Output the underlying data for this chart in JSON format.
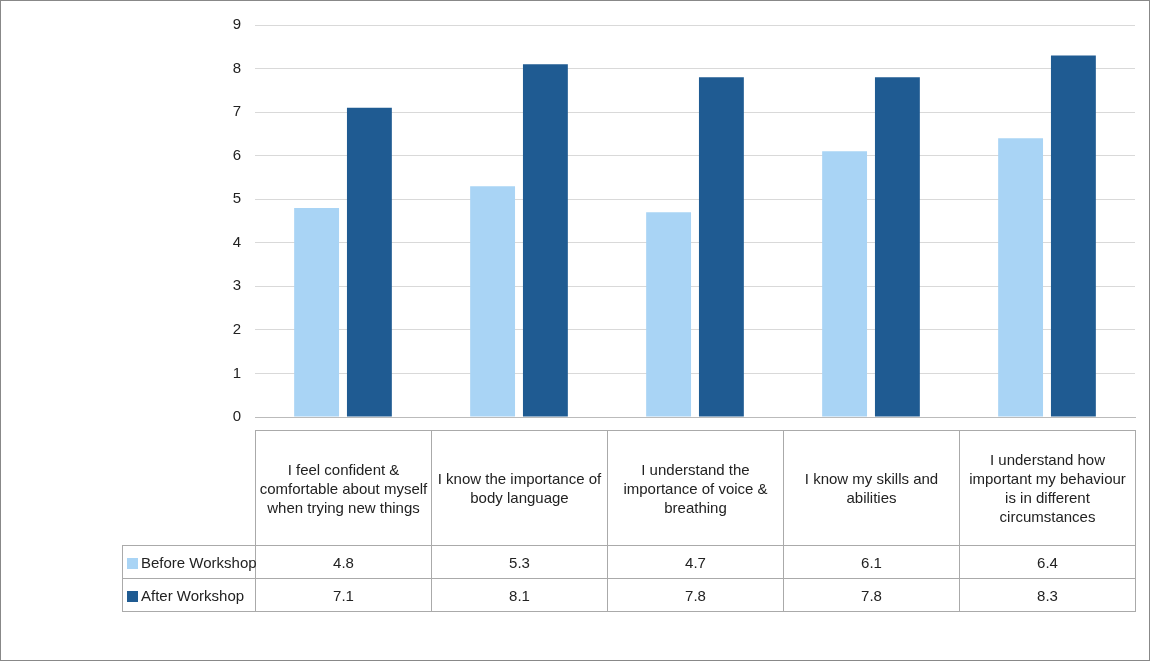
{
  "chart_data": {
    "type": "bar",
    "categories": [
      "I feel confident & comfortable about myself when trying new things",
      "I know the importance of body language",
      "I understand the importance of voice & breathing",
      "I know my skills and abilities",
      "I understand how important my behaviour is in different circumstances"
    ],
    "series": [
      {
        "name": "Before Workshop",
        "color": "#a9d4f5",
        "values": [
          4.8,
          5.3,
          4.7,
          6.1,
          6.4
        ]
      },
      {
        "name": "After Workshop",
        "color": "#1f5b92",
        "values": [
          7.1,
          8.1,
          7.8,
          7.8,
          8.3
        ]
      }
    ],
    "ylim": [
      0,
      9
    ],
    "yticks": [
      0,
      1,
      2,
      3,
      4,
      5,
      6,
      7,
      8,
      9
    ],
    "grid": "y",
    "legend": "bottom left",
    "data_labels": true,
    "tick_labels": "y"
  }
}
